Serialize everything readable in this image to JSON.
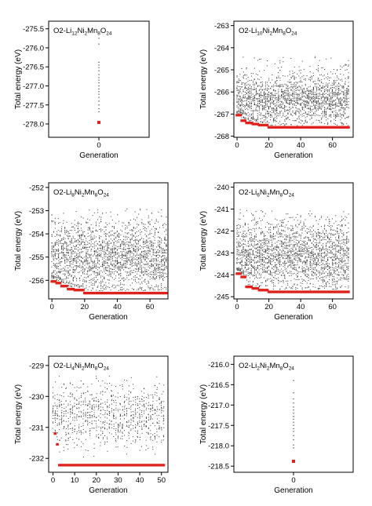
{
  "chart_data": [
    {
      "type": "scatter",
      "title_main": "O2-Li",
      "title_parts": [
        "12",
        "Ni",
        "2",
        "Mn",
        "8",
        "O",
        "24"
      ],
      "xlabel": "Generation",
      "ylabel": "Total energy (eV)",
      "xlim": [
        -1,
        1
      ],
      "ylim": [
        -278.35,
        -275.3
      ],
      "xticks": [
        0
      ],
      "xtick_labels": [
        "0"
      ],
      "yticks": [
        -275.5,
        -276.0,
        -276.5,
        -277.0,
        -277.5,
        -278.0
      ],
      "ytick_labels": [
        "-275.5",
        "-276.0",
        "-276.5",
        "-277.0",
        "-277.5",
        "-278.0"
      ],
      "grid": false,
      "series": [
        {
          "kind": "population",
          "color": "#333333",
          "points": [
            [
              0,
              -275.75
            ],
            [
              0,
              -275.9
            ],
            [
              0,
              -276.38
            ],
            [
              0,
              -276.45
            ],
            [
              0,
              -276.52
            ],
            [
              0,
              -276.6
            ],
            [
              0,
              -276.7
            ],
            [
              0,
              -276.78
            ],
            [
              0,
              -276.85
            ],
            [
              0,
              -276.92
            ],
            [
              0,
              -277.0
            ],
            [
              0,
              -277.08
            ],
            [
              0,
              -277.15
            ],
            [
              0,
              -277.22
            ],
            [
              0,
              -277.3
            ],
            [
              0,
              -277.4
            ],
            [
              0,
              -277.5
            ],
            [
              0,
              -277.6
            ],
            [
              0,
              -277.68
            ]
          ]
        },
        {
          "kind": "best",
          "color": "#e0201b",
          "points": [
            [
              0,
              -277.96
            ]
          ]
        }
      ]
    },
    {
      "type": "scatter",
      "title_main": "O2-Li",
      "title_parts": [
        "10",
        "Ni",
        "2",
        "Mn",
        "8",
        "O",
        "24"
      ],
      "xlabel": "Generation",
      "ylabel": "Total energy (eV)",
      "xlim": [
        -2,
        73
      ],
      "ylim": [
        -268.05,
        -262.8
      ],
      "xticks": [
        0,
        20,
        40,
        60
      ],
      "xtick_labels": [
        "0",
        "20",
        "40",
        "60"
      ],
      "yticks": [
        -263,
        -264,
        -265,
        -266,
        -267,
        -268
      ],
      "ytick_labels": [
        "-263",
        "-264",
        "-265",
        "-266",
        "-267",
        "-268"
      ],
      "grid": false,
      "generations": 71,
      "best_curve": [
        [
          0,
          -267.05
        ],
        [
          3,
          -267.3
        ],
        [
          6,
          -267.4
        ],
        [
          10,
          -267.45
        ],
        [
          14,
          -267.5
        ],
        [
          20,
          -267.6
        ],
        [
          71,
          -267.62
        ]
      ],
      "population": {
        "center": -266.4,
        "spread": 0.55,
        "min_floor": 0.08,
        "per_generation": 28,
        "outlier_top": -264.4
      },
      "series": [
        {
          "kind": "population",
          "color": "#333333"
        },
        {
          "kind": "best",
          "color": "#e0201b"
        }
      ]
    },
    {
      "type": "scatter",
      "title_main": "O2-Li",
      "title_parts": [
        "8",
        "Ni",
        "2",
        "Mn",
        "8",
        "O",
        "24"
      ],
      "xlabel": "Generation",
      "ylabel": "Total energy (eV)",
      "xlim": [
        -2,
        71
      ],
      "ylim": [
        -256.8,
        -251.8
      ],
      "xticks": [
        0,
        20,
        40,
        60
      ],
      "xtick_labels": [
        "0",
        "20",
        "40",
        "60"
      ],
      "yticks": [
        -252,
        -253,
        -254,
        -255,
        -256
      ],
      "ytick_labels": [
        "-252",
        "-253",
        "-254",
        "-255",
        "-256"
      ],
      "grid": false,
      "generations": 71,
      "best_curve": [
        [
          0,
          -256.05
        ],
        [
          3,
          -256.12
        ],
        [
          6,
          -256.25
        ],
        [
          10,
          -256.38
        ],
        [
          14,
          -256.42
        ],
        [
          20,
          -256.55
        ],
        [
          71,
          -256.57
        ]
      ],
      "population": {
        "center": -255.05,
        "spread": 0.75,
        "min_floor": 0.1,
        "per_generation": 32,
        "outlier_top": -252.9
      },
      "series": [
        {
          "kind": "population",
          "color": "#333333"
        },
        {
          "kind": "best",
          "color": "#e0201b"
        }
      ]
    },
    {
      "type": "scatter",
      "title_main": "O2-Li",
      "title_parts": [
        "6",
        "Ni",
        "2",
        "Mn",
        "8",
        "O",
        "24"
      ],
      "xlabel": "Generation",
      "ylabel": "Total energy (eV)",
      "xlim": [
        -2,
        73
      ],
      "ylim": [
        -245.1,
        -239.8
      ],
      "xticks": [
        0,
        20,
        40,
        60
      ],
      "xtick_labels": [
        "0",
        "20",
        "40",
        "60"
      ],
      "yticks": [
        -240,
        -241,
        -242,
        -243,
        -244,
        -245
      ],
      "ytick_labels": [
        "-240",
        "-241",
        "-242",
        "-243",
        "-244",
        "-245"
      ],
      "grid": false,
      "generations": 71,
      "best_curve": [
        [
          0,
          -243.95
        ],
        [
          3,
          -244.1
        ],
        [
          6,
          -244.55
        ],
        [
          10,
          -244.62
        ],
        [
          14,
          -244.7
        ],
        [
          20,
          -244.78
        ],
        [
          71,
          -244.8
        ]
      ],
      "population": {
        "center": -243.15,
        "spread": 0.75,
        "min_floor": 0.1,
        "per_generation": 32,
        "outlier_top": -241.0
      },
      "series": [
        {
          "kind": "population",
          "color": "#333333"
        },
        {
          "kind": "best",
          "color": "#e0201b"
        }
      ]
    },
    {
      "type": "scatter",
      "title_main": "O2-Li",
      "title_parts": [
        "4",
        "Ni",
        "2",
        "Mn",
        "8",
        "O",
        "24"
      ],
      "xlabel": "Generation",
      "ylabel": "Total energy (eV)",
      "xlim": [
        -2,
        53
      ],
      "ylim": [
        -232.45,
        -228.7
      ],
      "xticks": [
        0,
        10,
        20,
        30,
        40,
        50
      ],
      "xtick_labels": [
        "0",
        "10",
        "20",
        "30",
        "40",
        "50"
      ],
      "yticks": [
        -229,
        -230,
        -231,
        -232
      ],
      "ytick_labels": [
        "-229",
        "-230",
        "-231",
        "-232"
      ],
      "grid": false,
      "generations": 52,
      "best_curve": [
        [
          1,
          -231.2
        ],
        [
          2,
          -231.55
        ],
        [
          3,
          -232.22
        ],
        [
          52,
          -232.22
        ]
      ],
      "population": {
        "center": -230.65,
        "spread": 0.5,
        "min_floor": 0.06,
        "per_generation": 18,
        "outlier_top": -229.35
      },
      "series": [
        {
          "kind": "population",
          "color": "#333333"
        },
        {
          "kind": "best",
          "color": "#e0201b"
        }
      ]
    },
    {
      "type": "scatter",
      "title_main": "O2-Li",
      "title_parts": [
        "2",
        "Ni",
        "2",
        "Mn",
        "8",
        "O",
        "24"
      ],
      "xlabel": "Generation",
      "ylabel": "Total energy (eV)",
      "xlim": [
        -1,
        1
      ],
      "ylim": [
        -218.65,
        -215.8
      ],
      "xticks": [
        0
      ],
      "xtick_labels": [
        "0"
      ],
      "yticks": [
        -216.0,
        -216.5,
        -217.0,
        -217.5,
        -218.0,
        -218.5
      ],
      "ytick_labels": [
        "-216.0",
        "-216.5",
        "-217.0",
        "-217.5",
        "-218.0",
        "-218.5"
      ],
      "grid": false,
      "series": [
        {
          "kind": "population",
          "color": "#333333",
          "points": [
            [
              0,
              -216.4
            ],
            [
              0,
              -216.7
            ],
            [
              0,
              -216.85
            ],
            [
              0,
              -216.95
            ],
            [
              0,
              -217.05
            ],
            [
              0,
              -217.12
            ],
            [
              0,
              -217.2
            ],
            [
              0,
              -217.28
            ],
            [
              0,
              -217.35
            ],
            [
              0,
              -217.42
            ],
            [
              0,
              -217.5
            ],
            [
              0,
              -217.58
            ],
            [
              0,
              -217.65
            ],
            [
              0,
              -217.75
            ],
            [
              0,
              -217.85
            ],
            [
              0,
              -217.98
            ],
            [
              0,
              -218.05
            ]
          ]
        },
        {
          "kind": "best",
          "color": "#e0201b",
          "points": [
            [
              0,
              -218.38
            ]
          ]
        }
      ]
    }
  ]
}
